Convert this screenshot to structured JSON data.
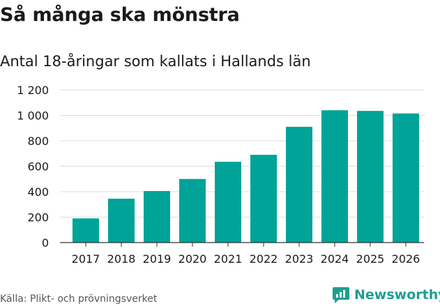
{
  "header": {
    "title": "Så många ska mönstra",
    "subtitle": "Antal 18-åringar som kallats i Hallands län"
  },
  "footer": {
    "source": "Källa: Plikt- och prövningsverket",
    "brand": "Newsworthy",
    "brand_icon": "newsworthy-logo-icon"
  },
  "colors": {
    "bar": "#00a398",
    "grid": "#dddddd",
    "axis": "#333333",
    "brand": "#1f9e92"
  },
  "chart_data": {
    "type": "bar",
    "title": "Så många ska mönstra",
    "subtitle": "Antal 18-åringar som kallats i Hallands län",
    "xlabel": "",
    "ylabel": "",
    "categories": [
      "2017",
      "2018",
      "2019",
      "2020",
      "2021",
      "2022",
      "2023",
      "2024",
      "2025",
      "2026"
    ],
    "values": [
      190,
      345,
      405,
      500,
      635,
      690,
      910,
      1040,
      1035,
      1015
    ],
    "ylim": [
      0,
      1200
    ],
    "yticks": [
      0,
      200,
      400,
      600,
      800,
      1000,
      1200
    ],
    "ytick_labels": [
      "0",
      "200",
      "400",
      "600",
      "800",
      "1 000",
      "1 200"
    ],
    "grid": true
  }
}
